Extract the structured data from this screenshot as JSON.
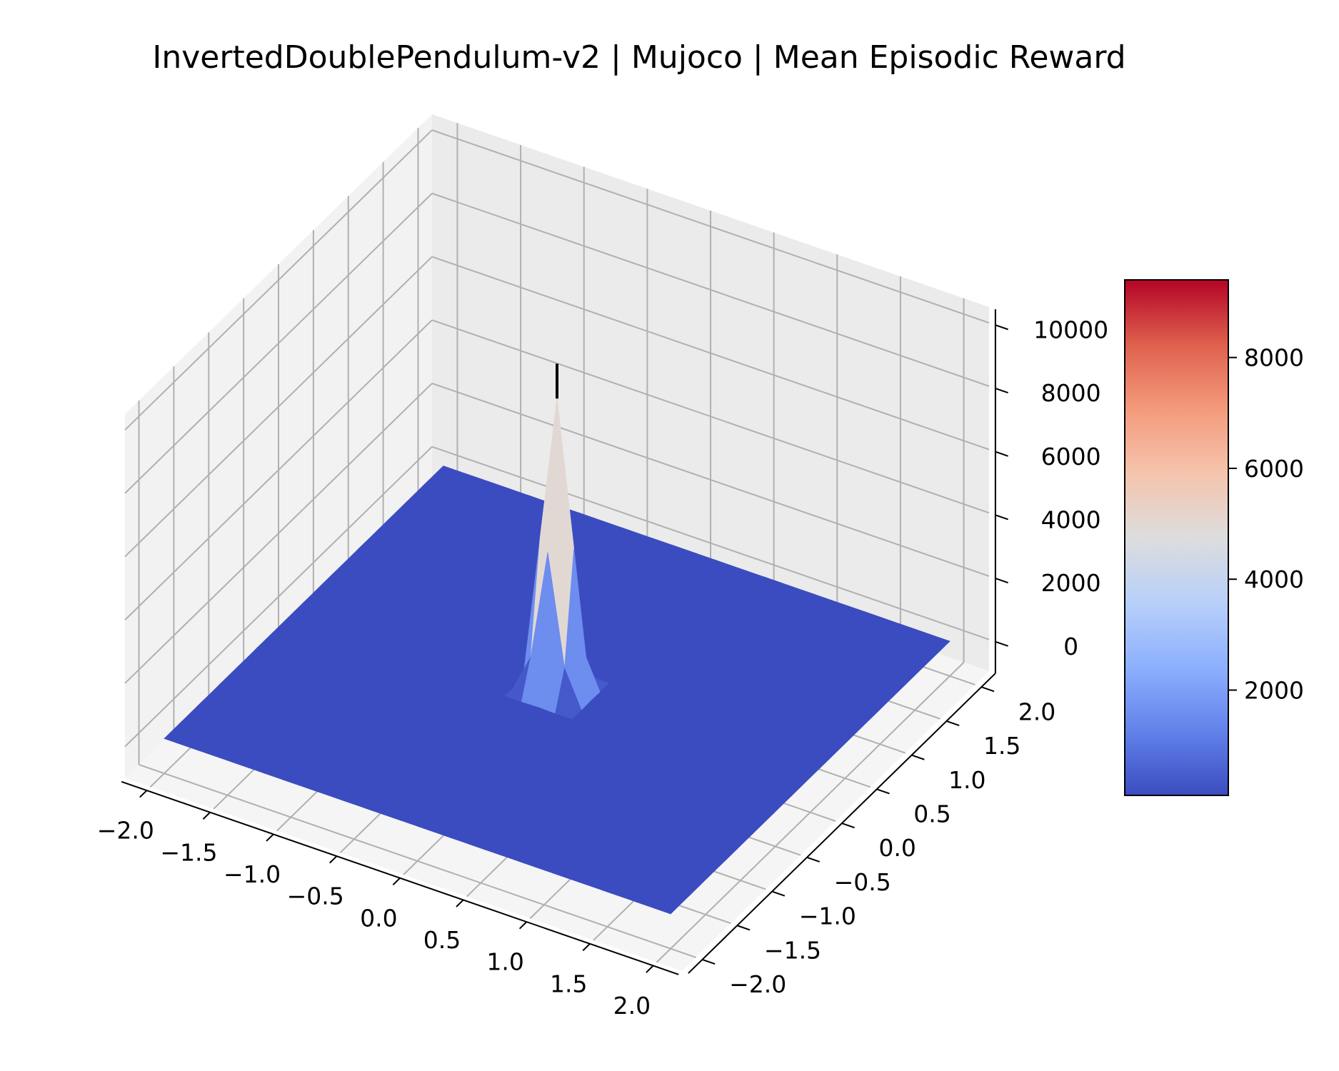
{
  "chart_data": {
    "type": "surface3d",
    "title": "InvertedDoublePendulum-v2 | Mujoco | Mean Episodic Reward",
    "xlabel": "",
    "ylabel": "",
    "zlabel": "",
    "x_ticks": [
      "−2.0",
      "−1.5",
      "−1.0",
      "−0.5",
      "0.0",
      "0.5",
      "1.0",
      "1.5",
      "2.0"
    ],
    "y_ticks": [
      "−2.0",
      "−1.5",
      "−1.0",
      "−0.5",
      "0.0",
      "0.5",
      "1.0",
      "1.5",
      "2.0"
    ],
    "z_ticks": [
      "0",
      "2000",
      "4000",
      "6000",
      "8000",
      "10000"
    ],
    "xlim": [
      -2.2,
      2.2
    ],
    "ylim": [
      -2.2,
      2.2
    ],
    "zlim": [
      -1000,
      10500
    ],
    "grid": true,
    "colormap": "coolwarm",
    "colorbar": {
      "ticks": [
        "2000",
        "4000",
        "6000",
        "8000"
      ],
      "range": [
        100,
        9400
      ]
    },
    "surface": {
      "peak_center": [
        0.0,
        0.0
      ],
      "peak_value": 9300,
      "base_value": 100,
      "peak_width": 0.15
    },
    "marker": {
      "x": 0.0,
      "y": 0.0,
      "z_start": 9300,
      "z_end": 10400,
      "color": "#000000"
    }
  }
}
